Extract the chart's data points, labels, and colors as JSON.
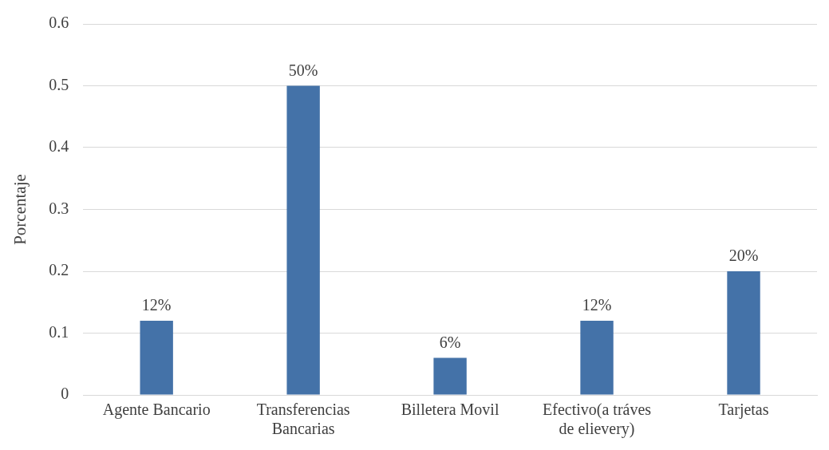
{
  "chart_data": {
    "type": "bar",
    "ylabel": "Porcentaje",
    "categories": [
      "Agente Bancario",
      "Transferencias Bancarias",
      "Billetera Movil",
      "Efectivo(a tráves de elievery)",
      "Tarjetas"
    ],
    "values": [
      0.12,
      0.5,
      0.06,
      0.12,
      0.2
    ],
    "value_labels": [
      "12%",
      "50%",
      "6%",
      "12%",
      "20%"
    ],
    "color": "#4472a8",
    "ylim": [
      0,
      0.6
    ],
    "yticks": [
      0,
      0.1,
      0.2,
      0.3,
      0.4,
      0.5,
      0.6
    ],
    "grid": "y",
    "legend": false
  }
}
